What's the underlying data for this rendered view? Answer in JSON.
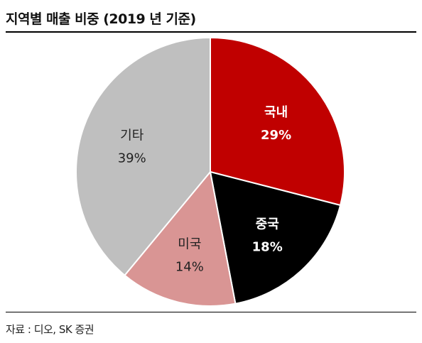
{
  "title": "지역별 매출 비중 (2019 년 기준)",
  "source": "자료 : 디오, SK 증권",
  "chart_data": {
    "type": "pie",
    "unit": "%",
    "slices": [
      {
        "label": "국내",
        "value": 29,
        "value_text": "29%",
        "color": "#c00000",
        "text_color": "#ffffff",
        "bold": true
      },
      {
        "label": "중국",
        "value": 18,
        "value_text": "18%",
        "color": "#000000",
        "text_color": "#ffffff",
        "bold": true
      },
      {
        "label": "미국",
        "value": 14,
        "value_text": "14%",
        "color": "#d99594",
        "text_color": "#222222",
        "bold": false
      },
      {
        "label": "기타",
        "value": 39,
        "value_text": "39%",
        "color": "#bfbfbf",
        "text_color": "#222222",
        "bold": false
      }
    ]
  }
}
